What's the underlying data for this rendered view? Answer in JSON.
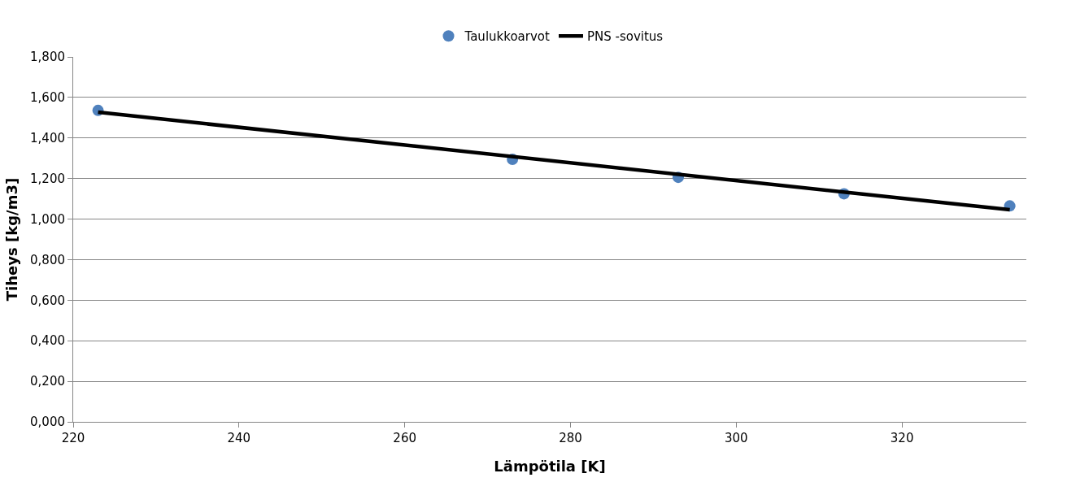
{
  "chart_data": {
    "type": "scatter",
    "xlabel": "Lämpötila [K]",
    "ylabel": "Tiheys [kg/m3]",
    "series": [
      {
        "name": "Taulukkoarvot",
        "color": "#4f81bd",
        "marker": "circle",
        "x": [
          223,
          273,
          293,
          313,
          333
        ],
        "values": [
          1.536,
          1.295,
          1.206,
          1.125,
          1.065
        ]
      },
      {
        "name": "PNS -sovitus",
        "type": "line",
        "color": "#000000",
        "marker": "none",
        "line_style": "solid",
        "x": [
          223,
          333
        ],
        "values": [
          1.527,
          1.046
        ]
      }
    ],
    "xlim": [
      220,
      335
    ],
    "xticks": [
      220,
      240,
      260,
      280,
      300,
      320
    ],
    "ylim": [
      0,
      1.8
    ],
    "yticks": [
      {
        "value": 0,
        "label": "0,000"
      },
      {
        "value": 0.2,
        "label": "0,200"
      },
      {
        "value": 0.4,
        "label": "0,400"
      },
      {
        "value": 0.6,
        "label": "0,600"
      },
      {
        "value": 0.8,
        "label": "0,800"
      },
      {
        "value": 1.0,
        "label": "1,000"
      },
      {
        "value": 1.2,
        "label": "1,200"
      },
      {
        "value": 1.4,
        "label": "1,400"
      },
      {
        "value": 1.6,
        "label": "1,600"
      },
      {
        "value": 1.8,
        "label": "1,800"
      }
    ],
    "grid": "y",
    "legend": "top"
  }
}
